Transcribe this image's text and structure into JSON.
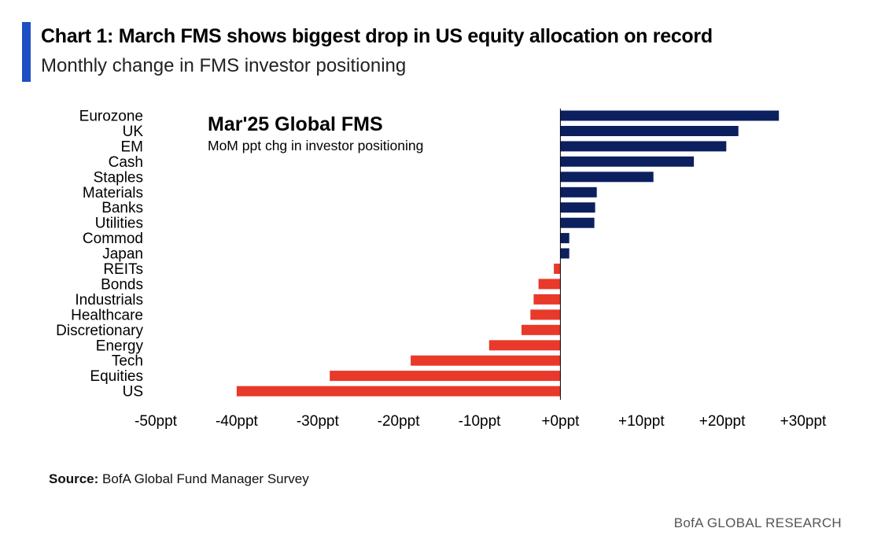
{
  "header": {
    "title": "Chart 1: March FMS shows biggest drop in US equity allocation on record",
    "subtitle": "Monthly change in FMS investor positioning"
  },
  "footer": {
    "source_label": "Source:",
    "source_text": " BofA Global Fund Manager Survey",
    "brand": "BofA GLOBAL RESEARCH"
  },
  "colors": {
    "accent": "#1f4fc4",
    "positive": "#0c1f5e",
    "negative": "#e8392b"
  },
  "chart_data": {
    "type": "bar",
    "orientation": "horizontal",
    "title": "Mar'25 Global FMS",
    "subtitle": "MoM ppt chg in investor positioning",
    "categories": [
      "Eurozone",
      "UK",
      "EM",
      "Cash",
      "Staples",
      "Materials",
      "Banks",
      "Utilities",
      "Commod",
      "Japan",
      "REITs",
      "Bonds",
      "Industrials",
      "Healthcare",
      "Discretionary",
      "Energy",
      "Tech",
      "Equities",
      "US"
    ],
    "values": [
      27,
      22,
      20.5,
      16.5,
      11.5,
      4.5,
      4.3,
      4.2,
      1.1,
      1.1,
      -0.8,
      -2.7,
      -3.3,
      -3.7,
      -4.8,
      -8.8,
      -18.5,
      -28.5,
      -40
    ],
    "xlim": [
      -50,
      30
    ],
    "xticks": [
      -50,
      -40,
      -30,
      -20,
      -10,
      0,
      10,
      20,
      30
    ],
    "xtick_labels": [
      "-50ppt",
      "-40ppt",
      "-30ppt",
      "-20ppt",
      "-10ppt",
      "+0ppt",
      "+10ppt",
      "+20ppt",
      "+30ppt"
    ],
    "xlabel": "",
    "ylabel": "",
    "grid": false
  }
}
